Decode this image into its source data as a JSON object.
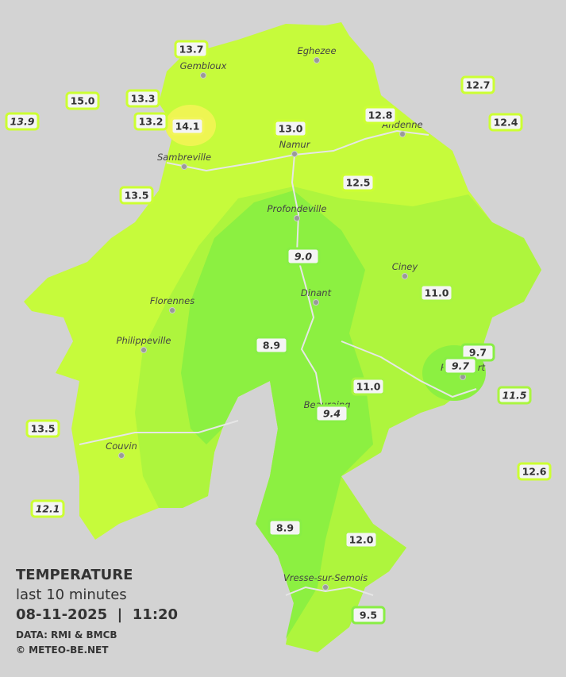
{
  "title": "TEMPERATURE",
  "subtitle": "last 10 minutes",
  "timestamp": "08-11-2025  |  11:20",
  "source": "DATA: RMI & BMCB",
  "credit": "© METEO-BE.NET",
  "cities": [
    "Eghezee",
    "Gembloux",
    "Andenne",
    "Namur",
    "Sambreville",
    "Profondeville",
    "Ciney",
    "Florennes",
    "Dinant",
    "Philippeville",
    "Rochefort",
    "Beauraing",
    "Couvin",
    "Vresse-sur-Semois"
  ],
  "stations": [
    {
      "value": "13.7",
      "italic": false,
      "color": "#ccff33"
    },
    {
      "value": "15.0",
      "italic": false,
      "color": "#ccff33"
    },
    {
      "value": "13.3",
      "italic": false,
      "color": "#ccff33"
    },
    {
      "value": "13.9",
      "italic": true,
      "color": "#ccff33"
    },
    {
      "value": "13.2",
      "italic": false,
      "color": "#ccff33"
    },
    {
      "value": "14.1",
      "italic": false,
      "color": "#f2f55a"
    },
    {
      "value": "13.0",
      "italic": false,
      "color": "#ccff33"
    },
    {
      "value": "12.8",
      "italic": false,
      "color": "#ccff33"
    },
    {
      "value": "12.7",
      "italic": false,
      "color": "#ccff33"
    },
    {
      "value": "12.4",
      "italic": false,
      "color": "#ccff33"
    },
    {
      "value": "13.5",
      "italic": false,
      "color": "#ccff33"
    },
    {
      "value": "12.5",
      "italic": false,
      "color": "#ccff33"
    },
    {
      "value": "9.0",
      "italic": true,
      "color": "#88ee44"
    },
    {
      "value": "11.0",
      "italic": false,
      "color": "#aaf540"
    },
    {
      "value": "8.9",
      "italic": false,
      "color": "#88ee44"
    },
    {
      "value": "9.7",
      "italic": false,
      "color": "#88ee44"
    },
    {
      "value": "9.7",
      "italic": true,
      "color": "#88ee44"
    },
    {
      "value": "11.0",
      "italic": false,
      "color": "#aaf540"
    },
    {
      "value": "11.5",
      "italic": true,
      "color": "#aaf540"
    },
    {
      "value": "9.4",
      "italic": true,
      "color": "#88ee44"
    },
    {
      "value": "13.5",
      "italic": false,
      "color": "#ccff33"
    },
    {
      "value": "12.6",
      "italic": false,
      "color": "#ccff33"
    },
    {
      "value": "12.1",
      "italic": true,
      "color": "#ccff33"
    },
    {
      "value": "8.9",
      "italic": false,
      "color": "#88ee44"
    },
    {
      "value": "12.0",
      "italic": false,
      "color": "#aaf540"
    },
    {
      "value": "9.5",
      "italic": false,
      "color": "#88ee44"
    }
  ]
}
